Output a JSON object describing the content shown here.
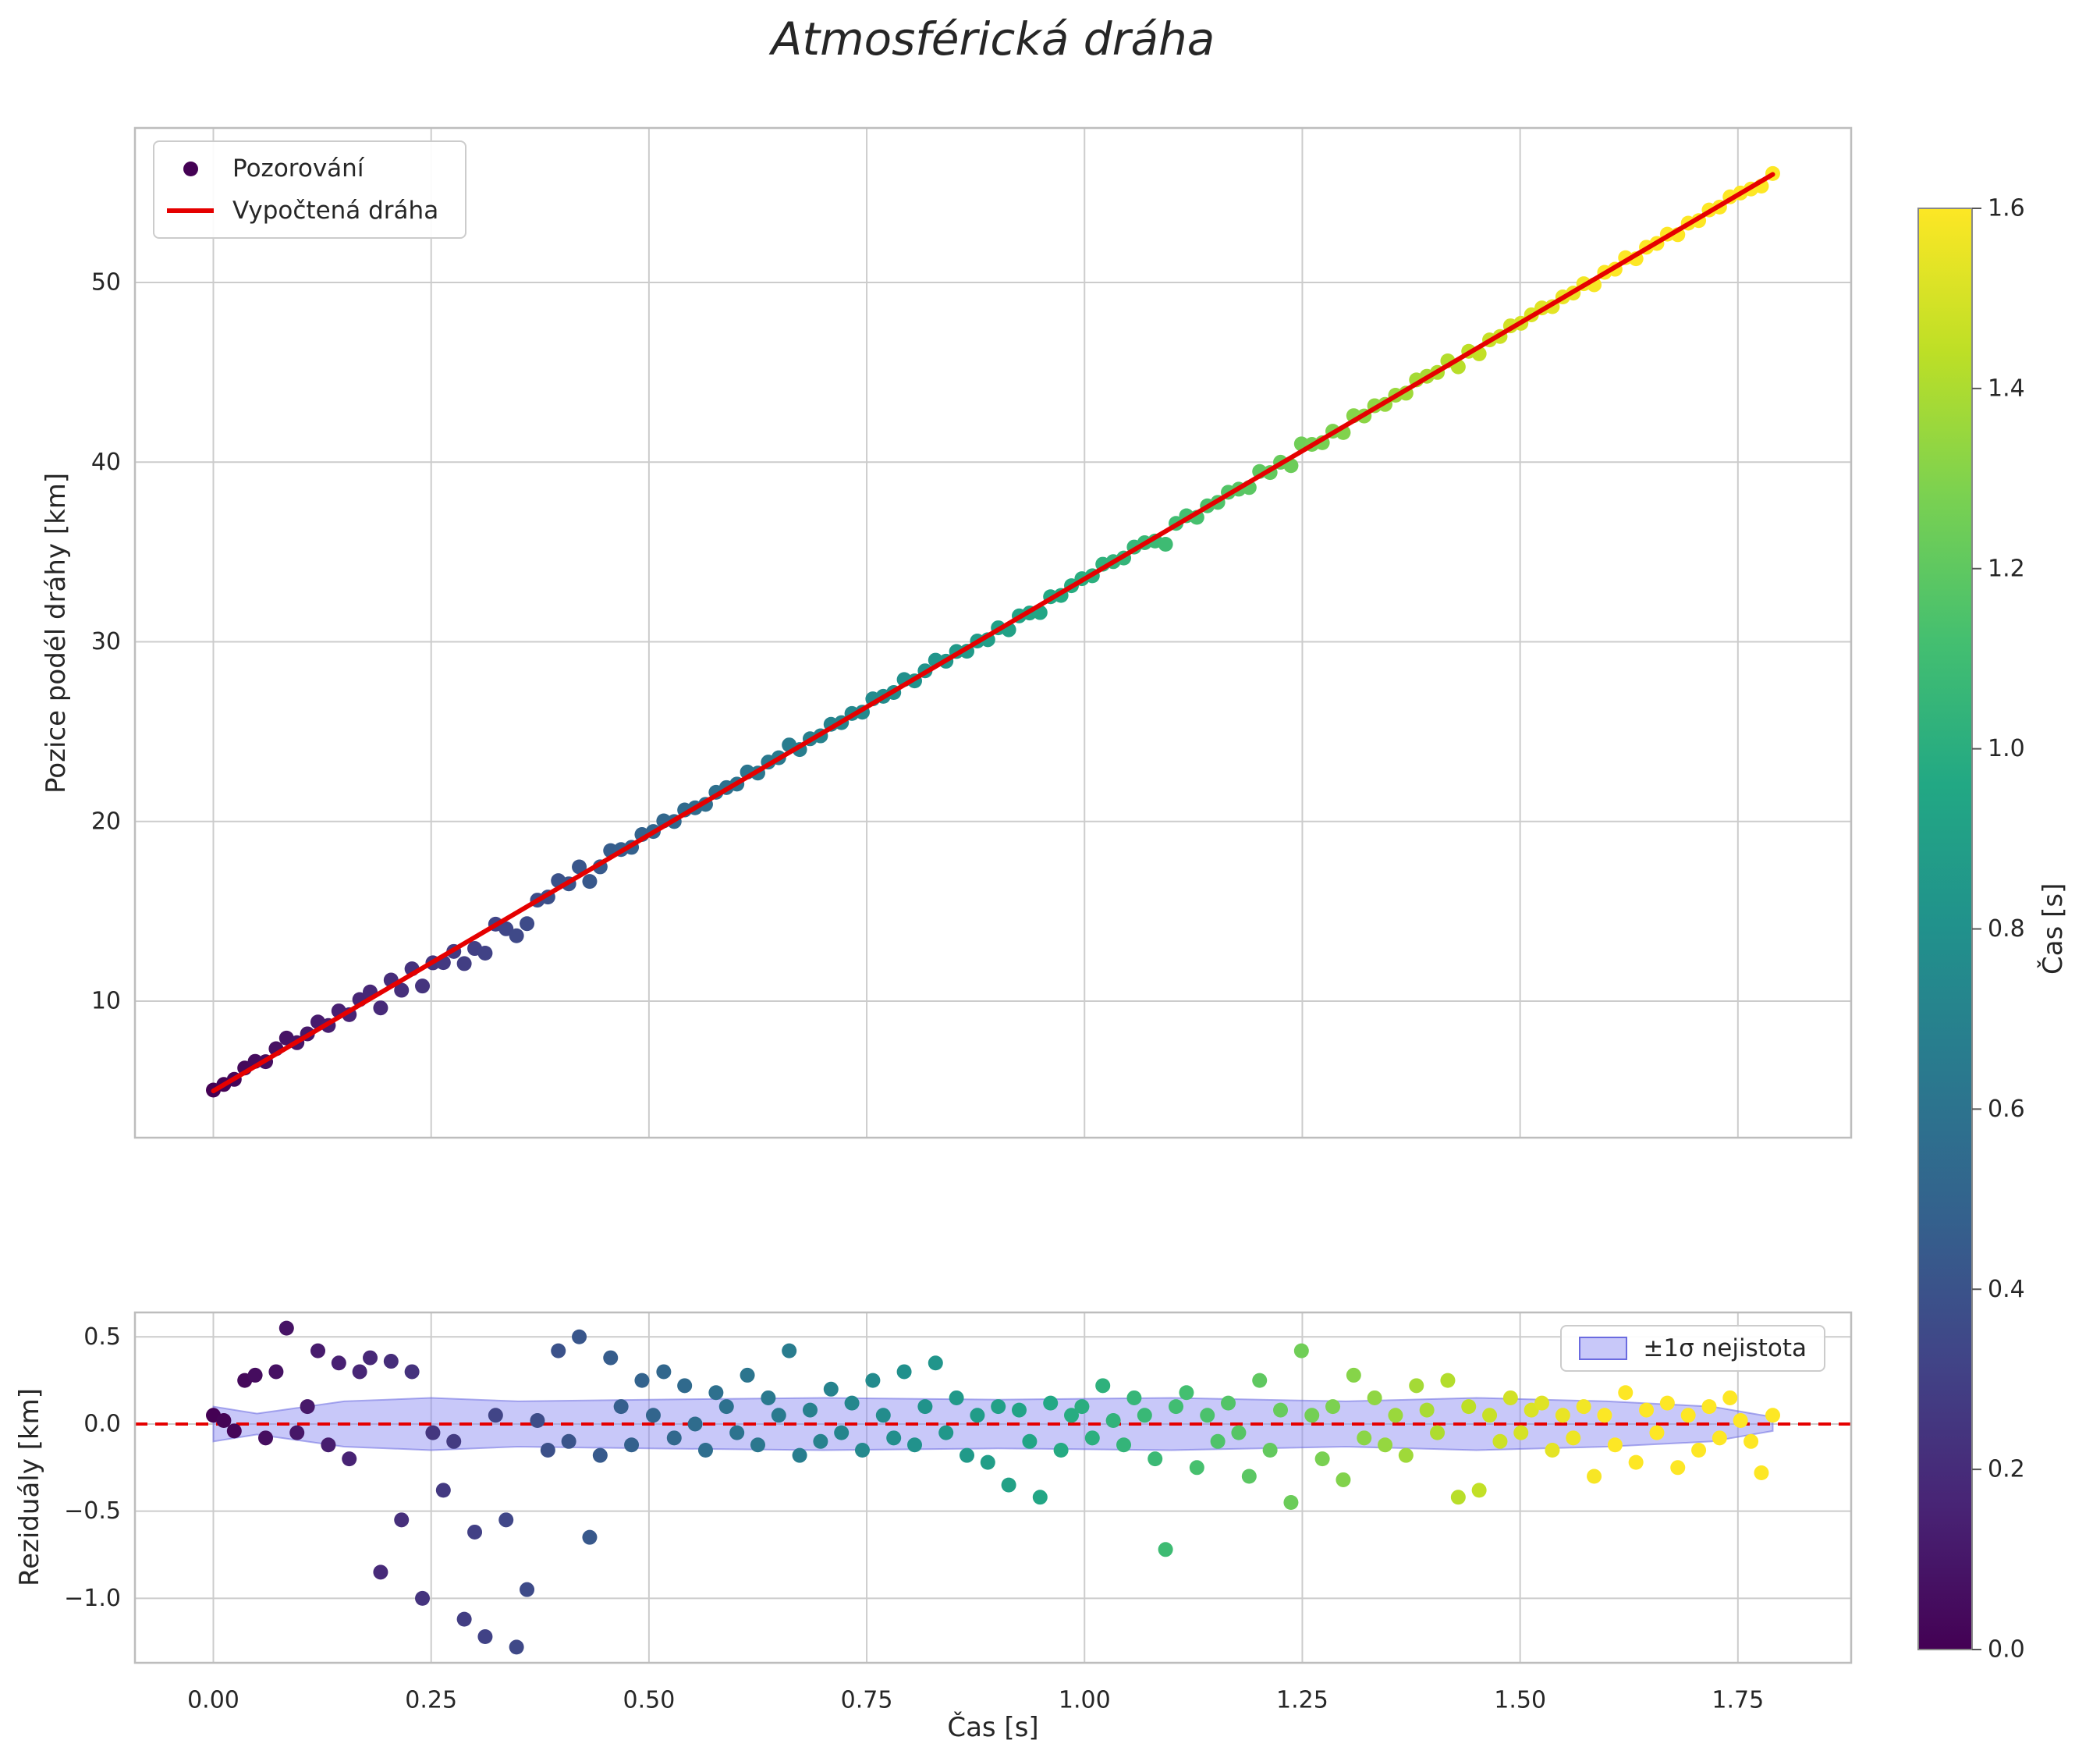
{
  "colors": {
    "fit_line": "#e50000",
    "zero_line": "#e50000",
    "grid": "#cccccc",
    "spine": "#bdbdbd",
    "band_fill": "#8585f2",
    "band_edge": "#6b6be0",
    "legend_marker": "#440154",
    "text": "#262626",
    "viridis": [
      "#440154",
      "#482475",
      "#414487",
      "#34618d",
      "#2a798e",
      "#21918c",
      "#22a884",
      "#44bf70",
      "#7ad151",
      "#bddf26",
      "#fde725"
    ]
  },
  "chart_data": {
    "type": "scatter+line",
    "title": "Atmosférická dráha",
    "points": {
      "color_by": "t",
      "t": [
        0.0,
        0.012,
        0.024,
        0.036,
        0.048,
        0.06,
        0.072,
        0.084,
        0.096,
        0.108,
        0.12,
        0.132,
        0.144,
        0.156,
        0.168,
        0.18,
        0.192,
        0.204,
        0.216,
        0.228,
        0.24,
        0.252,
        0.264,
        0.276,
        0.288,
        0.3,
        0.312,
        0.324,
        0.336,
        0.348,
        0.36,
        0.372,
        0.384,
        0.396,
        0.408,
        0.42,
        0.432,
        0.444,
        0.456,
        0.468,
        0.48,
        0.492,
        0.505,
        0.517,
        0.529,
        0.541,
        0.553,
        0.565,
        0.577,
        0.589,
        0.601,
        0.613,
        0.625,
        0.637,
        0.649,
        0.661,
        0.673,
        0.685,
        0.697,
        0.709,
        0.721,
        0.733,
        0.745,
        0.757,
        0.769,
        0.781,
        0.793,
        0.805,
        0.817,
        0.829,
        0.841,
        0.853,
        0.865,
        0.877,
        0.889,
        0.901,
        0.913,
        0.925,
        0.937,
        0.949,
        0.961,
        0.973,
        0.985,
        0.997,
        1.009,
        1.021,
        1.033,
        1.045,
        1.057,
        1.069,
        1.081,
        1.093,
        1.105,
        1.117,
        1.129,
        1.141,
        1.153,
        1.165,
        1.177,
        1.189,
        1.201,
        1.213,
        1.225,
        1.237,
        1.249,
        1.261,
        1.273,
        1.285,
        1.297,
        1.309,
        1.321,
        1.333,
        1.345,
        1.357,
        1.369,
        1.381,
        1.393,
        1.405,
        1.417,
        1.429,
        1.441,
        1.453,
        1.465,
        1.477,
        1.489,
        1.501,
        1.513,
        1.525,
        1.537,
        1.549,
        1.561,
        1.573,
        1.585,
        1.597,
        1.609,
        1.621,
        1.633,
        1.645,
        1.657,
        1.669,
        1.681,
        1.693,
        1.705,
        1.717,
        1.729,
        1.741,
        1.753,
        1.765,
        1.777,
        1.79
      ],
      "residual": [
        0.05,
        0.02,
        -0.04,
        0.25,
        0.28,
        -0.08,
        0.3,
        0.55,
        -0.05,
        0.1,
        0.42,
        -0.12,
        0.35,
        -0.2,
        0.3,
        0.38,
        -0.85,
        0.36,
        -0.55,
        0.3,
        -1.0,
        -0.05,
        -0.38,
        -0.1,
        -1.12,
        -0.62,
        -1.22,
        0.05,
        -0.55,
        -1.28,
        -0.95,
        0.02,
        -0.15,
        0.42,
        -0.1,
        0.5,
        -0.65,
        -0.18,
        0.38,
        0.1,
        -0.12,
        0.25,
        0.05,
        0.3,
        -0.08,
        0.22,
        0.0,
        -0.15,
        0.18,
        0.1,
        -0.05,
        0.28,
        -0.12,
        0.15,
        0.05,
        0.42,
        -0.18,
        0.08,
        -0.1,
        0.2,
        -0.05,
        0.12,
        -0.15,
        0.25,
        0.05,
        -0.08,
        0.3,
        -0.12,
        0.1,
        0.35,
        -0.05,
        0.15,
        -0.18,
        0.05,
        -0.22,
        0.1,
        -0.35,
        0.08,
        -0.1,
        -0.42,
        0.12,
        -0.15,
        0.05,
        0.1,
        -0.08,
        0.22,
        0.02,
        -0.12,
        0.15,
        0.05,
        -0.2,
        -0.72,
        0.1,
        0.18,
        -0.25,
        0.05,
        -0.1,
        0.12,
        -0.05,
        -0.3,
        0.25,
        -0.15,
        0.08,
        -0.45,
        0.42,
        0.05,
        -0.2,
        0.1,
        -0.32,
        0.28,
        -0.08,
        0.15,
        -0.12,
        0.05,
        -0.18,
        0.22,
        0.08,
        -0.05,
        0.25,
        -0.42,
        0.1,
        -0.38,
        0.05,
        -0.1,
        0.15,
        -0.05,
        0.08,
        0.12,
        -0.15,
        0.05,
        -0.08,
        0.1,
        -0.3,
        0.05,
        -0.12,
        0.18,
        -0.22,
        0.08,
        -0.05,
        0.12,
        -0.25,
        0.05,
        -0.15,
        0.1,
        -0.08,
        0.15,
        0.02,
        -0.1,
        -0.28,
        0.05
      ]
    },
    "fit_line": {
      "label": "Vypočtená dráha",
      "slope": 28.5,
      "intercept": 5.0,
      "t_range": [
        0.0,
        1.79
      ]
    },
    "top_plot": {
      "ylabel": "Pozice podél dráhy [km]",
      "xlim": [
        -0.09,
        1.88
      ],
      "ylim": [
        2.4,
        58.6
      ],
      "yticks": [
        10,
        20,
        30,
        40,
        50
      ],
      "ytick_labels": [
        "10",
        "20",
        "30",
        "40",
        "50"
      ],
      "legend": [
        {
          "label": "Pozorování"
        },
        {
          "label": "Vypočtená dráha"
        }
      ]
    },
    "residual_plot": {
      "ylabel": "Reziduály [km]",
      "xlabel": "Čas [s]",
      "xlim": [
        -0.09,
        1.88
      ],
      "ylim": [
        -1.37,
        0.64
      ],
      "xticks": [
        0,
        0.25,
        0.5,
        0.75,
        1.0,
        1.25,
        1.5,
        1.75
      ],
      "xtick_labels": [
        "0.00",
        "0.25",
        "0.50",
        "0.75",
        "1.00",
        "1.25",
        "1.50",
        "1.75"
      ],
      "yticks": [
        0.5,
        0.0,
        -0.5,
        -1.0
      ],
      "ytick_labels": [
        "0.5",
        "0.0",
        "−0.5",
        "−1.0"
      ],
      "legend_label": "±1σ nejistota",
      "zero_line": 0.0,
      "band": {
        "t": [
          0.0,
          0.05,
          0.15,
          0.25,
          0.35,
          0.5,
          0.7,
          0.9,
          1.1,
          1.3,
          1.45,
          1.6,
          1.72,
          1.79
        ],
        "sigma": [
          0.1,
          0.06,
          0.13,
          0.15,
          0.13,
          0.14,
          0.15,
          0.14,
          0.15,
          0.13,
          0.15,
          0.13,
          0.1,
          0.04
        ]
      }
    },
    "colorbar": {
      "label": "Čas [s]",
      "vmin": 0.0,
      "vmax": 1.6,
      "ticks": [
        0.0,
        0.2,
        0.4,
        0.6,
        0.8,
        1.0,
        1.2,
        1.4,
        1.6
      ],
      "tick_labels": [
        "0.0",
        "0.2",
        "0.4",
        "0.6",
        "0.8",
        "1.0",
        "1.2",
        "1.4",
        "1.6"
      ],
      "colormap": "viridis"
    }
  }
}
